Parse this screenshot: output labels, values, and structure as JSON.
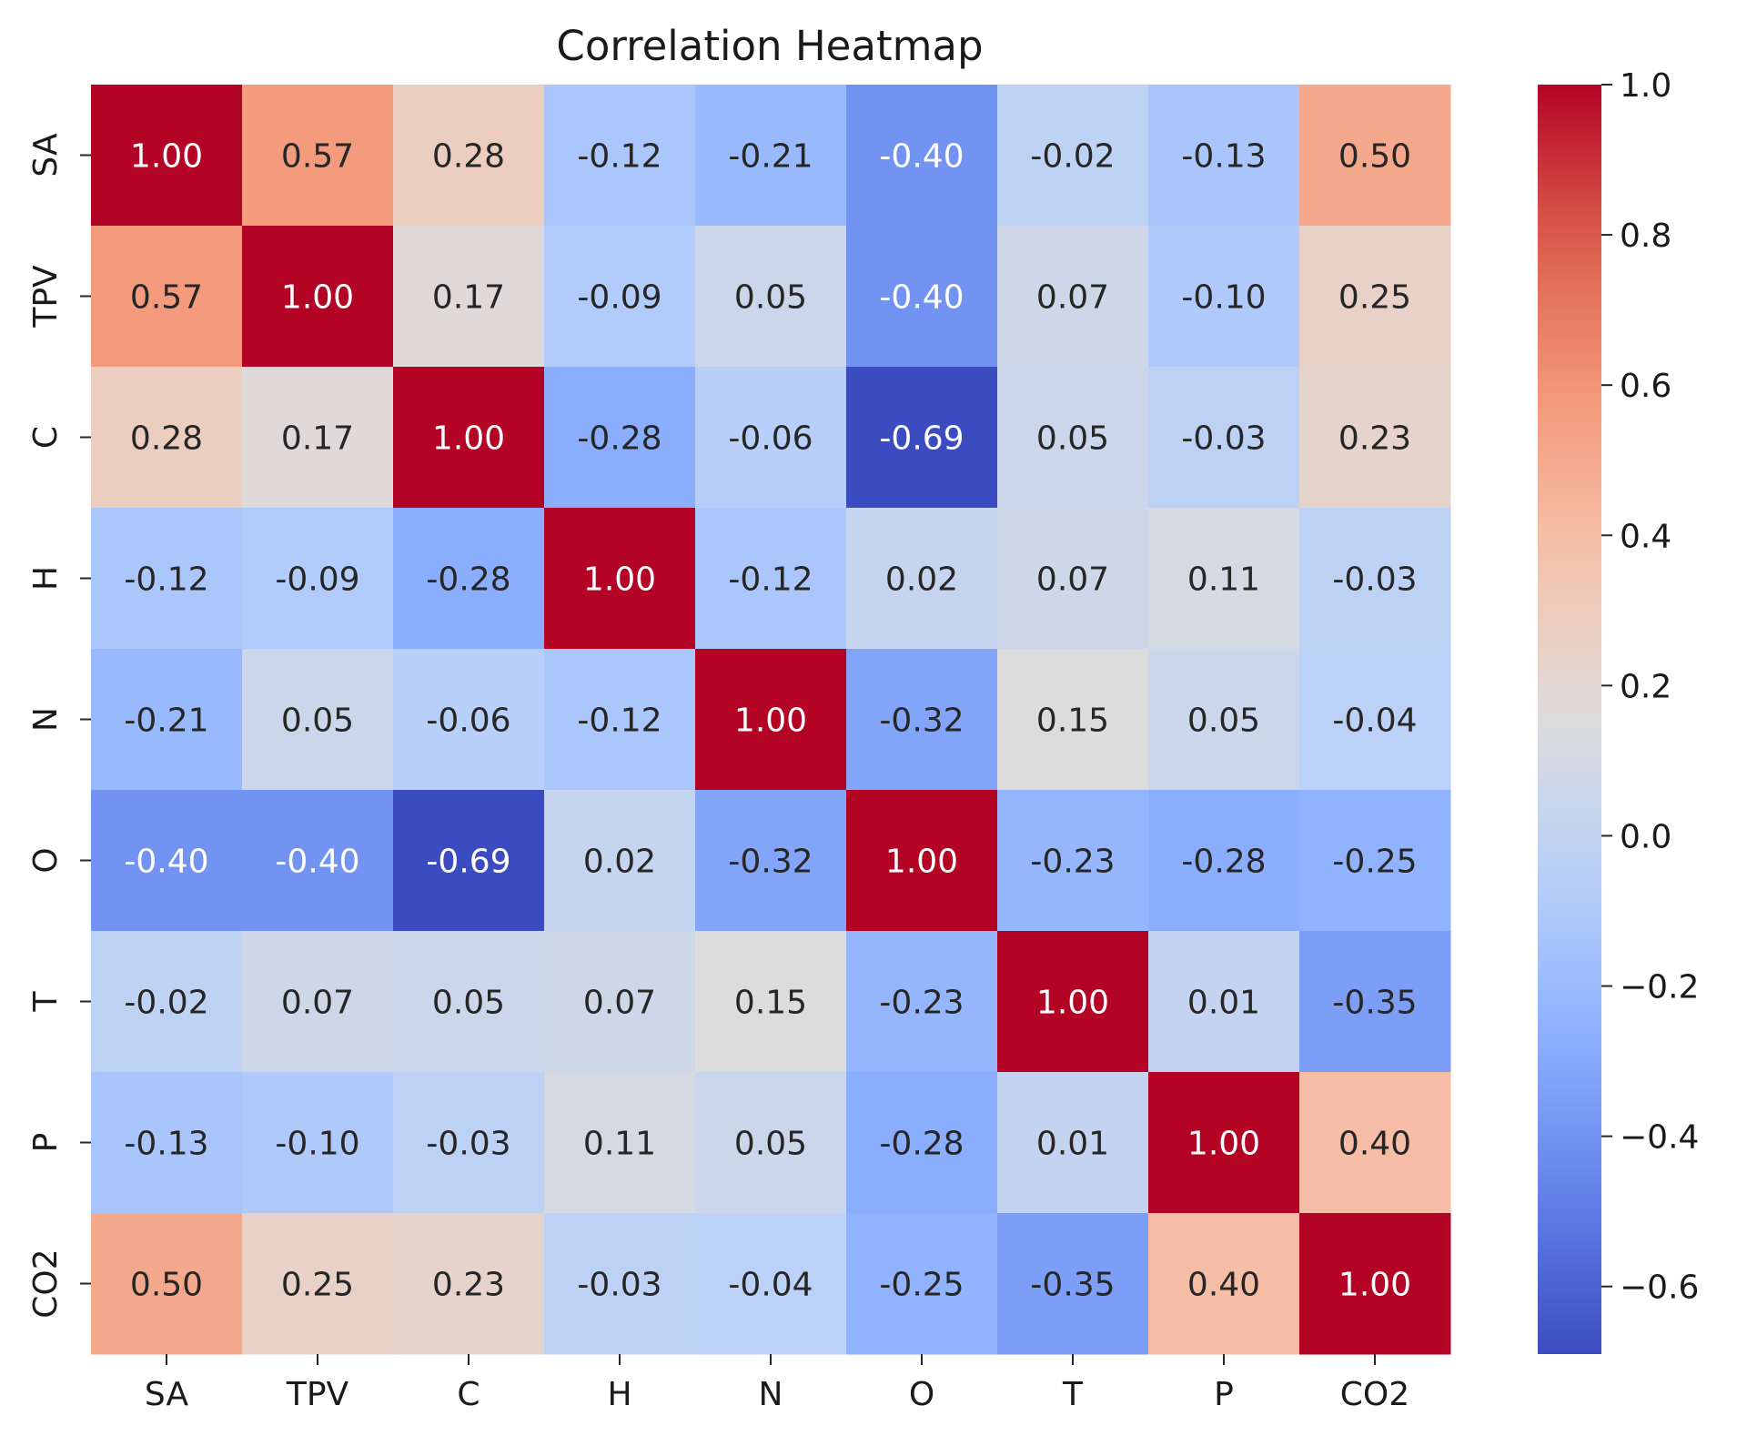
{
  "chart_data": {
    "type": "heatmap",
    "title": "Correlation Heatmap",
    "x_labels": [
      "SA",
      "TPV",
      "C",
      "H",
      "N",
      "O",
      "T",
      "P",
      "CO2"
    ],
    "y_labels": [
      "SA",
      "TPV",
      "C",
      "H",
      "N",
      "O",
      "T",
      "P",
      "CO2"
    ],
    "values": [
      [
        1.0,
        0.57,
        0.28,
        -0.12,
        -0.21,
        -0.4,
        -0.02,
        -0.13,
        0.5
      ],
      [
        0.57,
        1.0,
        0.17,
        -0.09,
        0.05,
        -0.4,
        0.07,
        -0.1,
        0.25
      ],
      [
        0.28,
        0.17,
        1.0,
        -0.28,
        -0.06,
        -0.69,
        0.05,
        -0.03,
        0.23
      ],
      [
        -0.12,
        -0.09,
        -0.28,
        1.0,
        -0.12,
        0.02,
        0.07,
        0.11,
        -0.03
      ],
      [
        -0.21,
        0.05,
        -0.06,
        -0.12,
        1.0,
        -0.32,
        0.15,
        0.05,
        -0.04
      ],
      [
        -0.4,
        -0.4,
        -0.69,
        0.02,
        -0.32,
        1.0,
        -0.23,
        -0.28,
        -0.25
      ],
      [
        -0.02,
        0.07,
        0.05,
        0.07,
        0.15,
        -0.23,
        1.0,
        0.01,
        -0.35
      ],
      [
        -0.13,
        -0.1,
        -0.03,
        0.11,
        0.05,
        -0.28,
        0.01,
        1.0,
        0.4
      ],
      [
        0.5,
        0.25,
        0.23,
        -0.03,
        -0.04,
        -0.25,
        -0.35,
        0.4,
        1.0
      ]
    ],
    "value_format": "0.00",
    "colormap": "coolwarm",
    "colorbar": {
      "range": [
        -0.69,
        1.0
      ],
      "ticks": [
        -0.6,
        -0.4,
        -0.2,
        0.0,
        0.2,
        0.4,
        0.6,
        0.8,
        1.0
      ],
      "tick_labels": [
        "−0.6",
        "−0.4",
        "−0.2",
        "0.0",
        "0.2",
        "0.4",
        "0.6",
        "0.8",
        "1.0"
      ]
    },
    "grid": false,
    "legend": "colorbar-right"
  }
}
